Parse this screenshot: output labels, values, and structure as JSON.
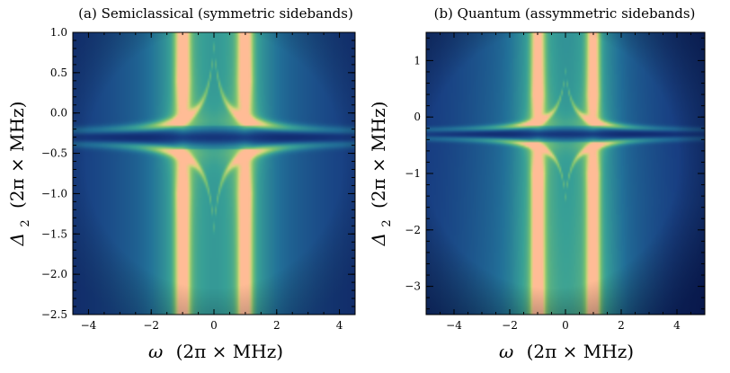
{
  "chart_data": [
    {
      "type": "heatmap",
      "title": "(a) Semiclassical (symmetric sidebands)",
      "xlabel_symbol": "ω",
      "xlabel_unit": "(2π × MHz)",
      "ylabel_symbol": "Δ",
      "ylabel_subscript": "2",
      "ylabel_unit": "(2π × MHz)",
      "xlim": [
        -4.5,
        4.5
      ],
      "ylim": [
        -2.5,
        1.0
      ],
      "x_ticks": [
        -4,
        -2,
        0,
        2,
        4
      ],
      "x_tick_labels": [
        "−4",
        "−2",
        "0",
        "2",
        "4"
      ],
      "y_ticks": [
        -2.5,
        -2.0,
        -1.5,
        -1.0,
        -0.5,
        0.0,
        0.5,
        1.0
      ],
      "y_tick_labels": [
        "−2.5",
        "−2.0",
        "−1.5",
        "−1.0",
        "−0.5",
        "0.0",
        "0.5",
        "1.0"
      ],
      "features": {
        "sideband_centers": [
          -1.0,
          1.0
        ],
        "dark_band_delta": -0.3,
        "symmetric": true
      }
    },
    {
      "type": "heatmap",
      "title": "(b) Quantum (assymmetric sidebands)",
      "xlabel_symbol": "ω",
      "xlabel_unit": "(2π × MHz)",
      "ylabel_symbol": "Δ",
      "ylabel_subscript": "2",
      "ylabel_unit": "(2π × MHz)",
      "xlim": [
        -5,
        5
      ],
      "ylim": [
        -3.5,
        1.5
      ],
      "x_ticks": [
        -4,
        -2,
        0,
        2,
        4
      ],
      "x_tick_labels": [
        "−4",
        "−2",
        "0",
        "2",
        "4"
      ],
      "y_ticks": [
        -3,
        -2,
        -1,
        0,
        1
      ],
      "y_tick_labels": [
        "−3",
        "−2",
        "−1",
        "0",
        "1"
      ],
      "features": {
        "sideband_centers": [
          -1.0,
          1.0
        ],
        "dark_band_delta": -0.3,
        "symmetric": false
      }
    }
  ]
}
